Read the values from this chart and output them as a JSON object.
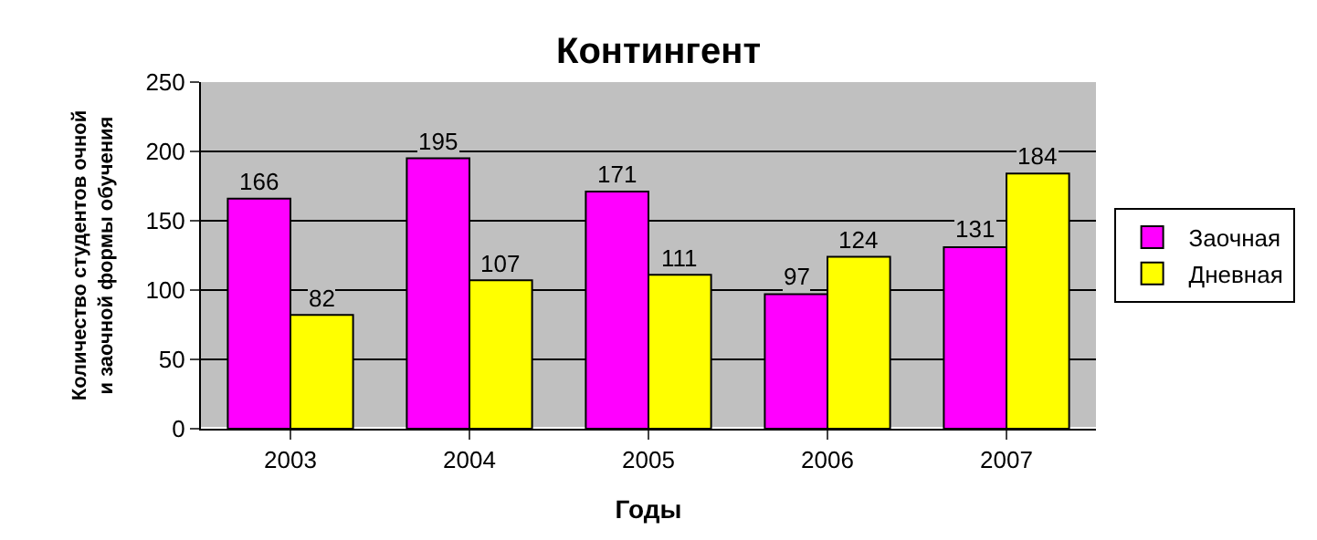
{
  "chart_data": {
    "type": "bar",
    "title": "Контингент",
    "xlabel": "Годы",
    "ylabel": "Количество студентов очной и заочной формы обучения",
    "categories": [
      "2003",
      "2004",
      "2005",
      "2006",
      "2007"
    ],
    "series": [
      {
        "name": "Заочная",
        "color": "#ff00ff",
        "values": [
          166,
          195,
          171,
          97,
          131
        ]
      },
      {
        "name": "Дневная",
        "color": "#ffff00",
        "values": [
          82,
          107,
          111,
          124,
          184
        ]
      }
    ],
    "ylim": [
      0,
      250
    ],
    "yticks": [
      0,
      50,
      100,
      150,
      200,
      250
    ],
    "grid": "y",
    "legend": "right",
    "data_labels": true
  }
}
